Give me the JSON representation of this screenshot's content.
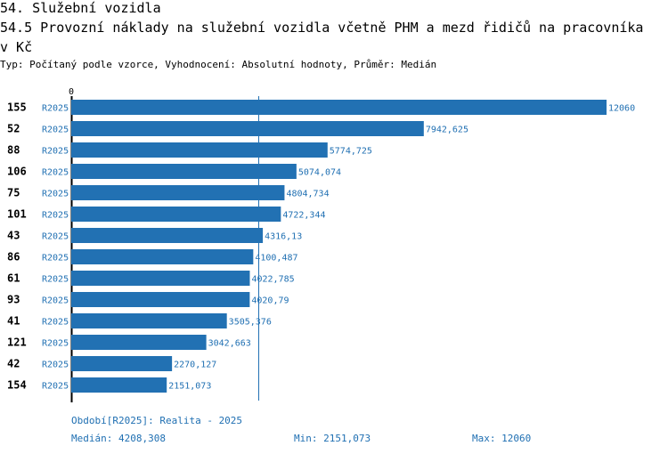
{
  "header": {
    "section_title": "54. Služební vozidla",
    "chart_title": "54.5 Provozní náklady na služební vozidla včetně PHM a mezd řidičů na pracovníka v Kč",
    "subtitle": "Typ: Počítaný podle vzorce, Vyhodnocení: Absolutní hodnoty, Průměr: Medián"
  },
  "chart_data": {
    "type": "bar",
    "orientation": "horizontal",
    "axis_zero_label": "0",
    "xlim": [
      0,
      12060
    ],
    "median_line": 4208.308,
    "colors": {
      "bar": "#2271b3",
      "label": "#1f6fb2",
      "axis": "#000000"
    },
    "rows": [
      {
        "id": "155",
        "period": "R2025",
        "value": 12060,
        "label": "12060"
      },
      {
        "id": "52",
        "period": "R2025",
        "value": 7942.625,
        "label": "7942,625"
      },
      {
        "id": "88",
        "period": "R2025",
        "value": 5774.725,
        "label": "5774,725"
      },
      {
        "id": "106",
        "period": "R2025",
        "value": 5074.074,
        "label": "5074,074"
      },
      {
        "id": "75",
        "period": "R2025",
        "value": 4804.734,
        "label": "4804,734"
      },
      {
        "id": "101",
        "period": "R2025",
        "value": 4722.344,
        "label": "4722,344"
      },
      {
        "id": "43",
        "period": "R2025",
        "value": 4316.13,
        "label": "4316,13"
      },
      {
        "id": "86",
        "period": "R2025",
        "value": 4100.487,
        "label": "4100,487"
      },
      {
        "id": "61",
        "period": "R2025",
        "value": 4022.785,
        "label": "4022,785"
      },
      {
        "id": "93",
        "period": "R2025",
        "value": 4020.79,
        "label": "4020,79"
      },
      {
        "id": "41",
        "period": "R2025",
        "value": 3505.376,
        "label": "3505,376"
      },
      {
        "id": "121",
        "period": "R2025",
        "value": 3042.663,
        "label": "3042,663"
      },
      {
        "id": "42",
        "period": "R2025",
        "value": 2270.127,
        "label": "2270,127"
      },
      {
        "id": "154",
        "period": "R2025",
        "value": 2151.073,
        "label": "2151,073"
      }
    ]
  },
  "footer": {
    "period_note": "Období[R2025]: Realita - 2025",
    "median": "Medián: 4208,308",
    "min": "Min: 2151,073",
    "max": "Max: 12060"
  }
}
